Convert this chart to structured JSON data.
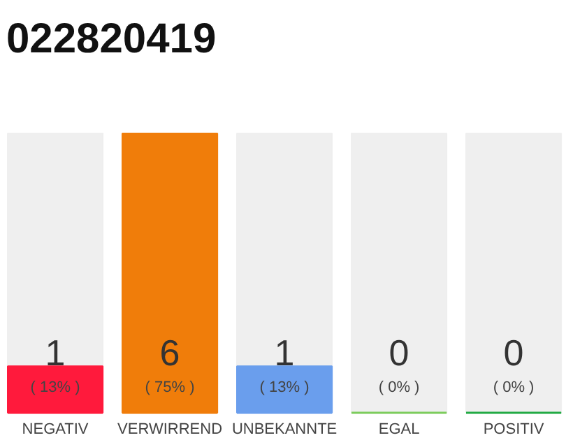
{
  "chart_data": {
    "type": "bar",
    "title": "022820419",
    "categories": [
      "NEGATIV",
      "VERWIRREND",
      "UNBEKANNTE",
      "EGAL",
      "POSITIV"
    ],
    "values": [
      1,
      6,
      1,
      0,
      0
    ],
    "colors": [
      "#ff1a3c",
      "#f07d0a",
      "#6a9eed",
      "#7ccc5c",
      "#22aa44"
    ],
    "value_labels": [
      "1",
      "6",
      "1",
      "0",
      "0"
    ],
    "annotations": [
      "( 13% )",
      "( 75% )",
      "( 13% )",
      "( 0% )",
      "( 0% )"
    ],
    "grid": false
  }
}
